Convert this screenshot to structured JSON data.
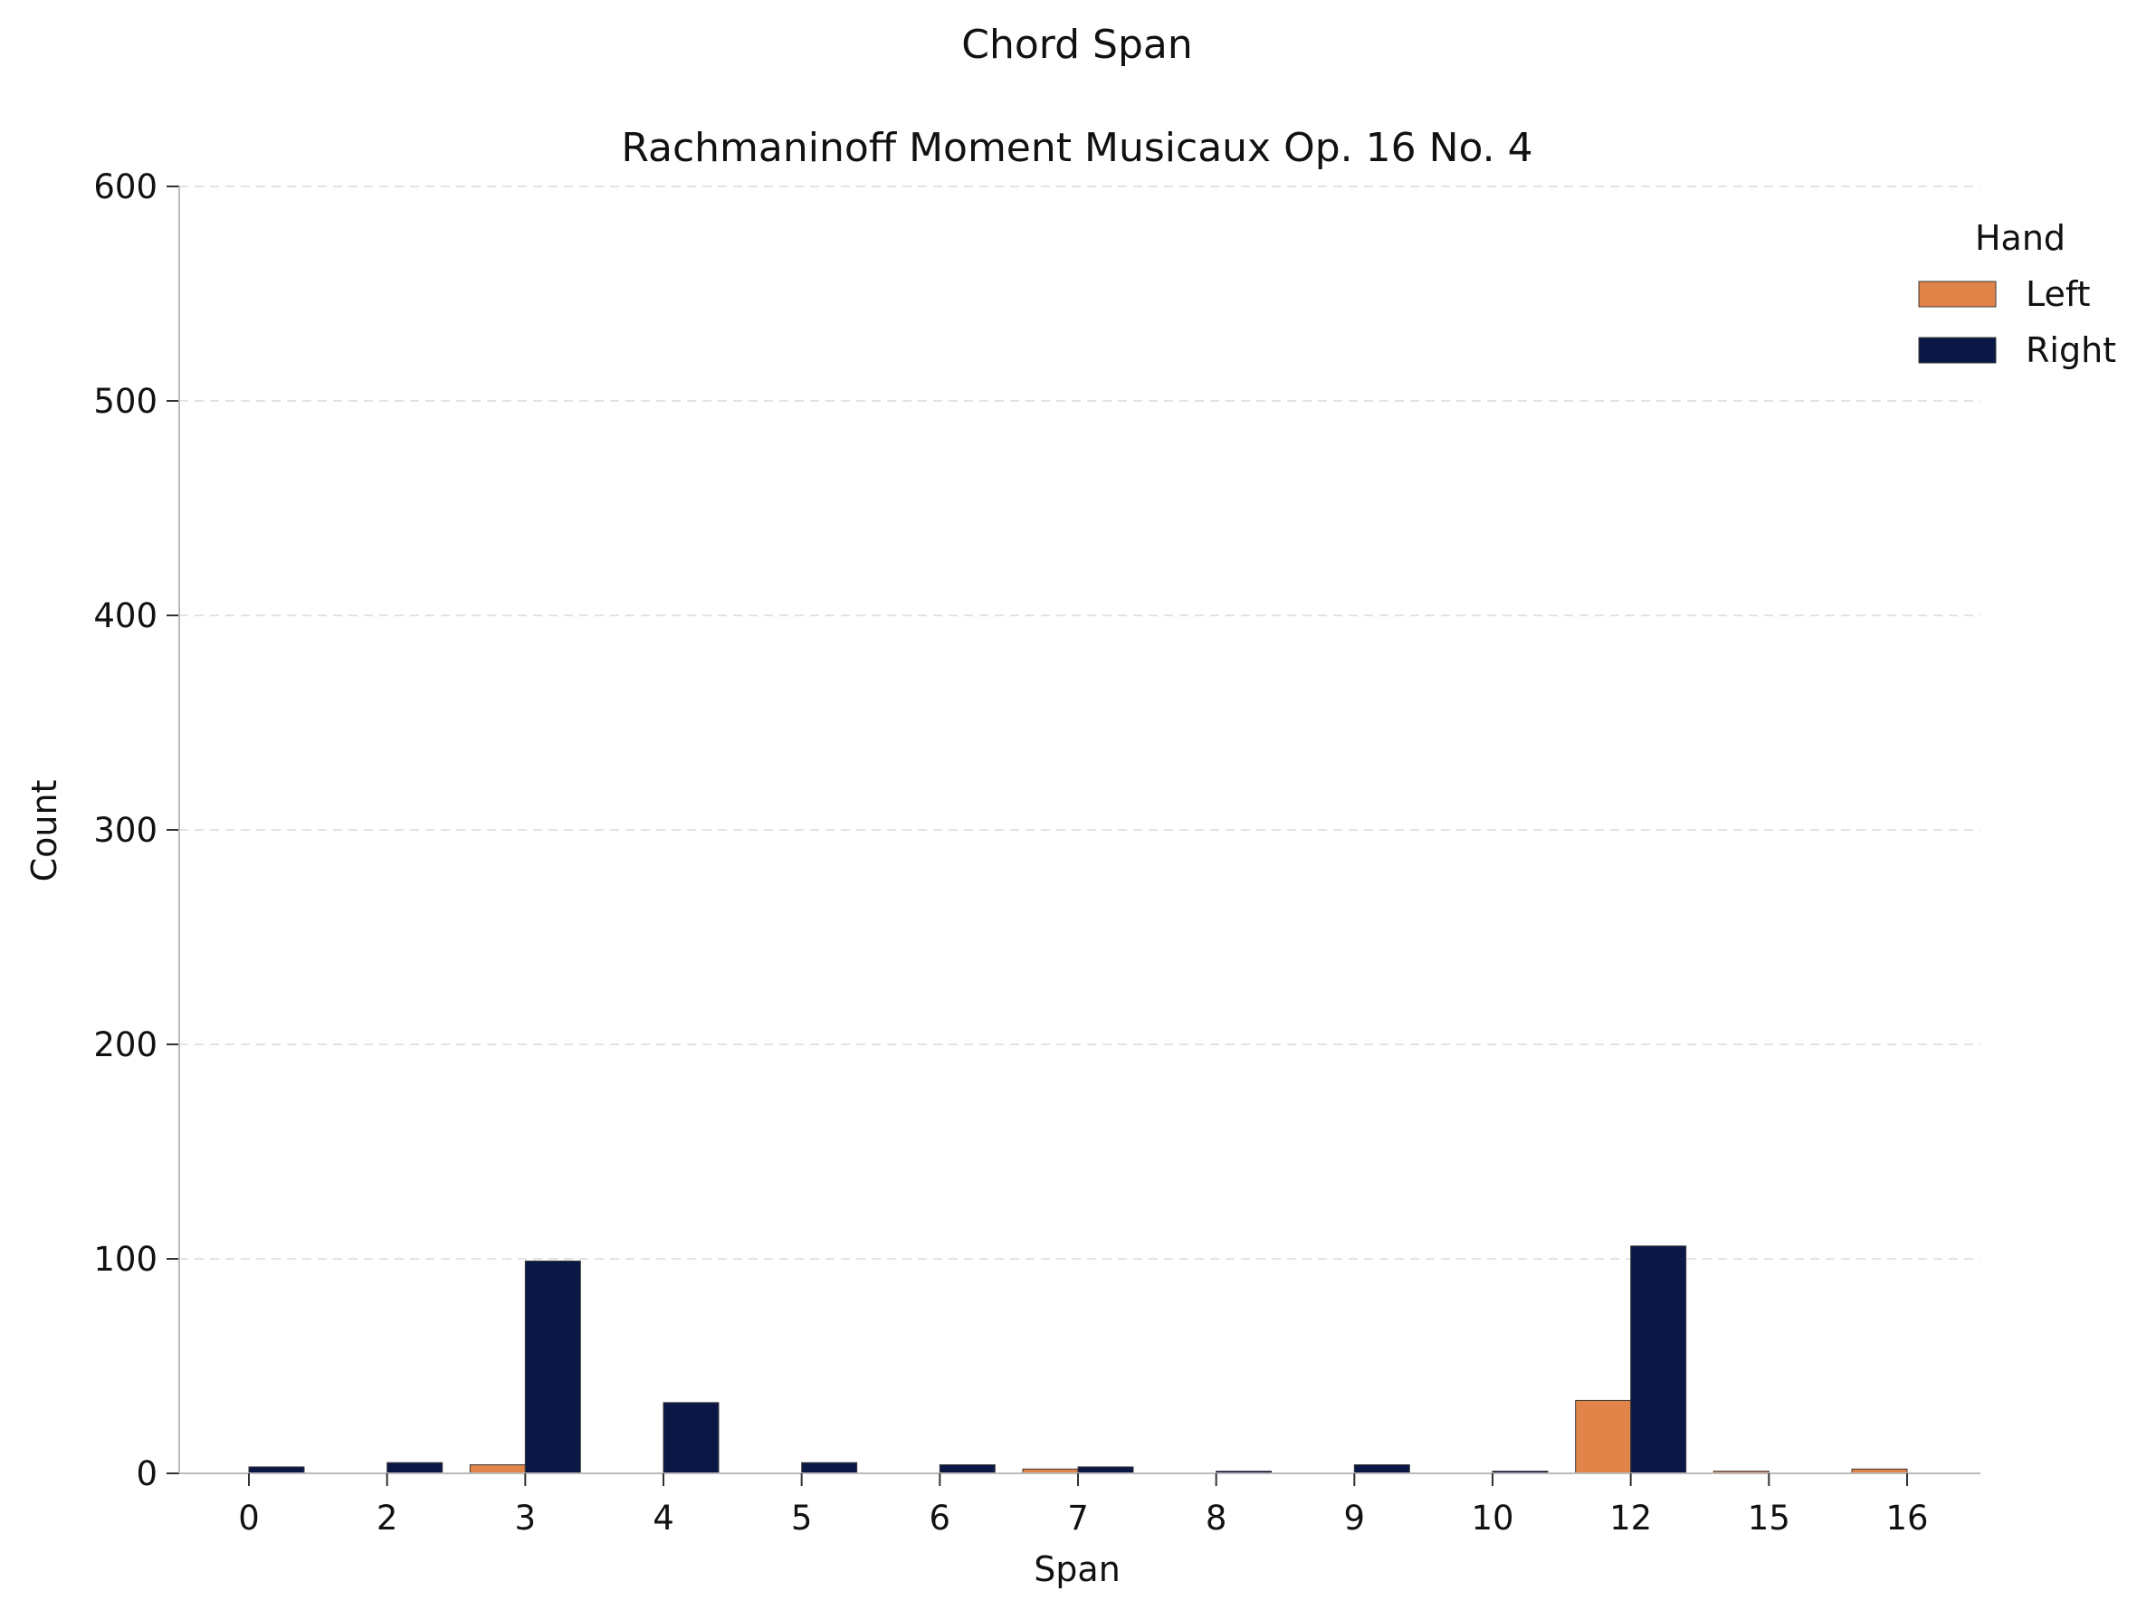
{
  "chart_data": {
    "type": "bar",
    "title": "Chord Span",
    "subtitle": "Rachmaninoff Moment Musicaux Op. 16 No. 4",
    "xlabel": "Span",
    "ylabel": "Count",
    "ylim": [
      0,
      600
    ],
    "yticks": [
      0,
      100,
      200,
      300,
      400,
      500,
      600
    ],
    "grid": "horizontal dashed",
    "legend": {
      "title": "Hand",
      "placement": "top-right"
    },
    "categories": [
      "0",
      "2",
      "3",
      "4",
      "5",
      "6",
      "7",
      "8",
      "9",
      "10",
      "12",
      "15",
      "16"
    ],
    "series": [
      {
        "name": "Left",
        "color": "#e0844a",
        "values": [
          0,
          0,
          4,
          0,
          0,
          0,
          2,
          0,
          0,
          0,
          34,
          1,
          2
        ]
      },
      {
        "name": "Right",
        "color": "#0b1845",
        "values": [
          3,
          5,
          99,
          33,
          5,
          4,
          3,
          1,
          4,
          1,
          106,
          0,
          0
        ]
      }
    ]
  }
}
